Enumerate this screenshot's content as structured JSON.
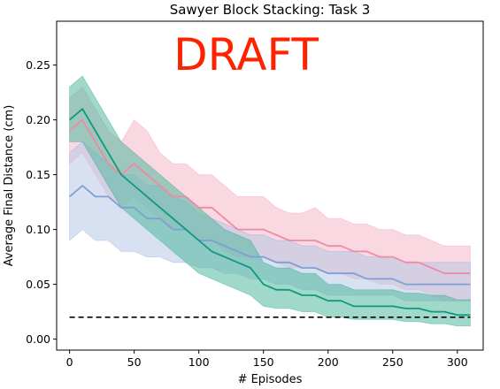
{
  "chart_data": {
    "type": "line",
    "title": "Sawyer Block Stacking: Task 3",
    "xlabel": "# Episodes",
    "ylabel": "Average Final Distance (cm)",
    "xlim": [
      -10,
      320
    ],
    "ylim": [
      -0.01,
      0.29
    ],
    "xticks": [
      0,
      50,
      100,
      150,
      200,
      250,
      300
    ],
    "yticks": [
      0.0,
      0.05,
      0.1,
      0.15,
      0.2,
      0.25
    ],
    "xtick_labels": [
      "0",
      "50",
      "100",
      "150",
      "200",
      "250",
      "300"
    ],
    "ytick_labels": [
      "0.00",
      "0.05",
      "0.10",
      "0.15",
      "0.20",
      "0.25"
    ],
    "grid": false,
    "legend": "none",
    "watermark": "DRAFT",
    "colors": {
      "pink": "#ef8aa2",
      "pink_band": "#f4b8c8",
      "blue": "#7f9fd3",
      "blue_band": "#b8c8e8",
      "teal": "#0f9a80",
      "teal_band": "#52b89e",
      "baseline": "#000000",
      "watermark": "#ff2200"
    },
    "reference_line": {
      "y": 0.02,
      "x": [
        0,
        310
      ],
      "style": "dashed"
    },
    "series": [
      {
        "color_key": "pink",
        "x": [
          0,
          10,
          20,
          30,
          40,
          50,
          60,
          70,
          80,
          90,
          100,
          110,
          120,
          130,
          140,
          150,
          160,
          170,
          180,
          190,
          200,
          210,
          220,
          230,
          240,
          250,
          260,
          270,
          280,
          290,
          300,
          310
        ],
        "y": [
          0.19,
          0.2,
          0.18,
          0.16,
          0.15,
          0.16,
          0.15,
          0.14,
          0.13,
          0.13,
          0.12,
          0.12,
          0.11,
          0.1,
          0.1,
          0.1,
          0.095,
          0.09,
          0.09,
          0.09,
          0.085,
          0.085,
          0.08,
          0.08,
          0.075,
          0.075,
          0.07,
          0.07,
          0.065,
          0.06,
          0.06,
          0.06
        ],
        "lower": [
          0.16,
          0.17,
          0.15,
          0.13,
          0.12,
          0.13,
          0.12,
          0.11,
          0.1,
          0.1,
          0.09,
          0.09,
          0.08,
          0.075,
          0.075,
          0.075,
          0.07,
          0.065,
          0.065,
          0.065,
          0.06,
          0.06,
          0.055,
          0.055,
          0.05,
          0.05,
          0.045,
          0.045,
          0.04,
          0.035,
          0.035,
          0.035
        ],
        "upper": [
          0.22,
          0.23,
          0.21,
          0.19,
          0.18,
          0.2,
          0.19,
          0.17,
          0.16,
          0.16,
          0.15,
          0.15,
          0.14,
          0.13,
          0.13,
          0.13,
          0.12,
          0.115,
          0.115,
          0.12,
          0.11,
          0.11,
          0.105,
          0.105,
          0.1,
          0.1,
          0.095,
          0.095,
          0.09,
          0.085,
          0.085,
          0.085
        ]
      },
      {
        "color_key": "blue",
        "x": [
          0,
          10,
          20,
          30,
          40,
          50,
          60,
          70,
          80,
          90,
          100,
          110,
          120,
          130,
          140,
          150,
          160,
          170,
          180,
          190,
          200,
          210,
          220,
          230,
          240,
          250,
          260,
          270,
          280,
          290,
          300,
          310
        ],
        "y": [
          0.13,
          0.14,
          0.13,
          0.13,
          0.12,
          0.12,
          0.11,
          0.11,
          0.1,
          0.1,
          0.09,
          0.09,
          0.085,
          0.08,
          0.075,
          0.075,
          0.07,
          0.07,
          0.065,
          0.065,
          0.06,
          0.06,
          0.06,
          0.055,
          0.055,
          0.055,
          0.05,
          0.05,
          0.05,
          0.05,
          0.05,
          0.05
        ],
        "lower": [
          0.09,
          0.1,
          0.09,
          0.09,
          0.08,
          0.08,
          0.075,
          0.075,
          0.07,
          0.07,
          0.065,
          0.065,
          0.06,
          0.06,
          0.055,
          0.055,
          0.05,
          0.05,
          0.045,
          0.045,
          0.04,
          0.04,
          0.04,
          0.04,
          0.04,
          0.04,
          0.035,
          0.035,
          0.035,
          0.035,
          0.035,
          0.035
        ],
        "upper": [
          0.17,
          0.18,
          0.17,
          0.16,
          0.15,
          0.15,
          0.14,
          0.14,
          0.13,
          0.125,
          0.115,
          0.11,
          0.105,
          0.1,
          0.095,
          0.095,
          0.09,
          0.09,
          0.085,
          0.085,
          0.08,
          0.08,
          0.08,
          0.075,
          0.075,
          0.075,
          0.07,
          0.07,
          0.07,
          0.07,
          0.07,
          0.07
        ]
      },
      {
        "color_key": "teal",
        "x": [
          0,
          10,
          20,
          30,
          40,
          50,
          60,
          70,
          80,
          90,
          100,
          110,
          120,
          130,
          140,
          150,
          160,
          170,
          180,
          190,
          200,
          210,
          220,
          230,
          240,
          250,
          260,
          270,
          280,
          290,
          300,
          310
        ],
        "y": [
          0.2,
          0.21,
          0.19,
          0.17,
          0.15,
          0.14,
          0.13,
          0.12,
          0.11,
          0.1,
          0.09,
          0.08,
          0.075,
          0.07,
          0.065,
          0.05,
          0.045,
          0.045,
          0.04,
          0.04,
          0.035,
          0.035,
          0.03,
          0.03,
          0.03,
          0.03,
          0.028,
          0.028,
          0.025,
          0.025,
          0.022,
          0.022
        ],
        "lower": [
          0.18,
          0.18,
          0.16,
          0.14,
          0.12,
          0.11,
          0.1,
          0.09,
          0.08,
          0.07,
          0.06,
          0.055,
          0.05,
          0.045,
          0.04,
          0.03,
          0.028,
          0.028,
          0.025,
          0.025,
          0.02,
          0.02,
          0.018,
          0.018,
          0.018,
          0.018,
          0.016,
          0.016,
          0.014,
          0.014,
          0.012,
          0.012
        ],
        "upper": [
          0.23,
          0.24,
          0.22,
          0.2,
          0.18,
          0.17,
          0.16,
          0.15,
          0.14,
          0.13,
          0.12,
          0.11,
          0.1,
          0.095,
          0.09,
          0.07,
          0.065,
          0.065,
          0.06,
          0.06,
          0.05,
          0.05,
          0.045,
          0.045,
          0.045,
          0.045,
          0.042,
          0.042,
          0.04,
          0.04,
          0.036,
          0.036
        ]
      }
    ]
  }
}
